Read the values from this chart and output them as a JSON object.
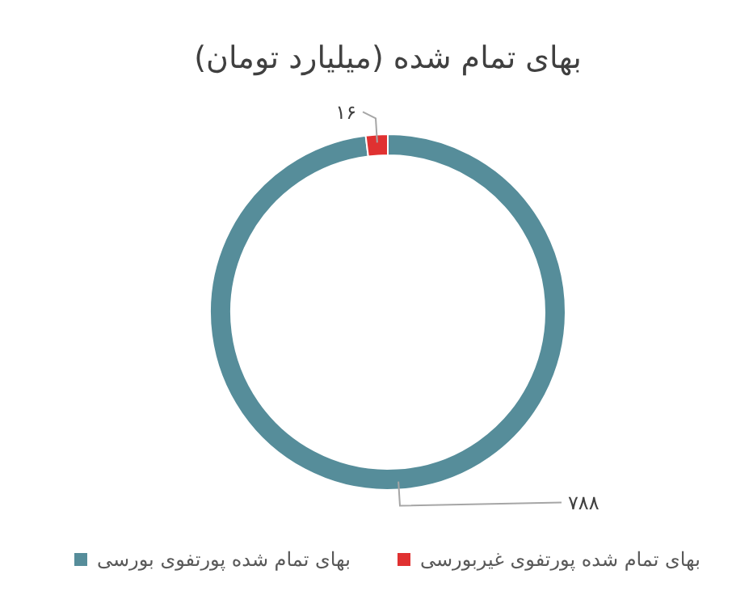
{
  "chart_data": {
    "type": "donut",
    "title": "بهای تمام شده (میلیارد تومان)",
    "categories": [
      "بهای تمام شده پورتفوی بورسی",
      "بهای تمام شده پورتفوی غیربورسی"
    ],
    "values": [
      788,
      16
    ],
    "value_labels": [
      "۷۸۸",
      "۱۶"
    ],
    "colors": [
      "#568d9a",
      "#e03131"
    ],
    "legend": "bottom"
  }
}
